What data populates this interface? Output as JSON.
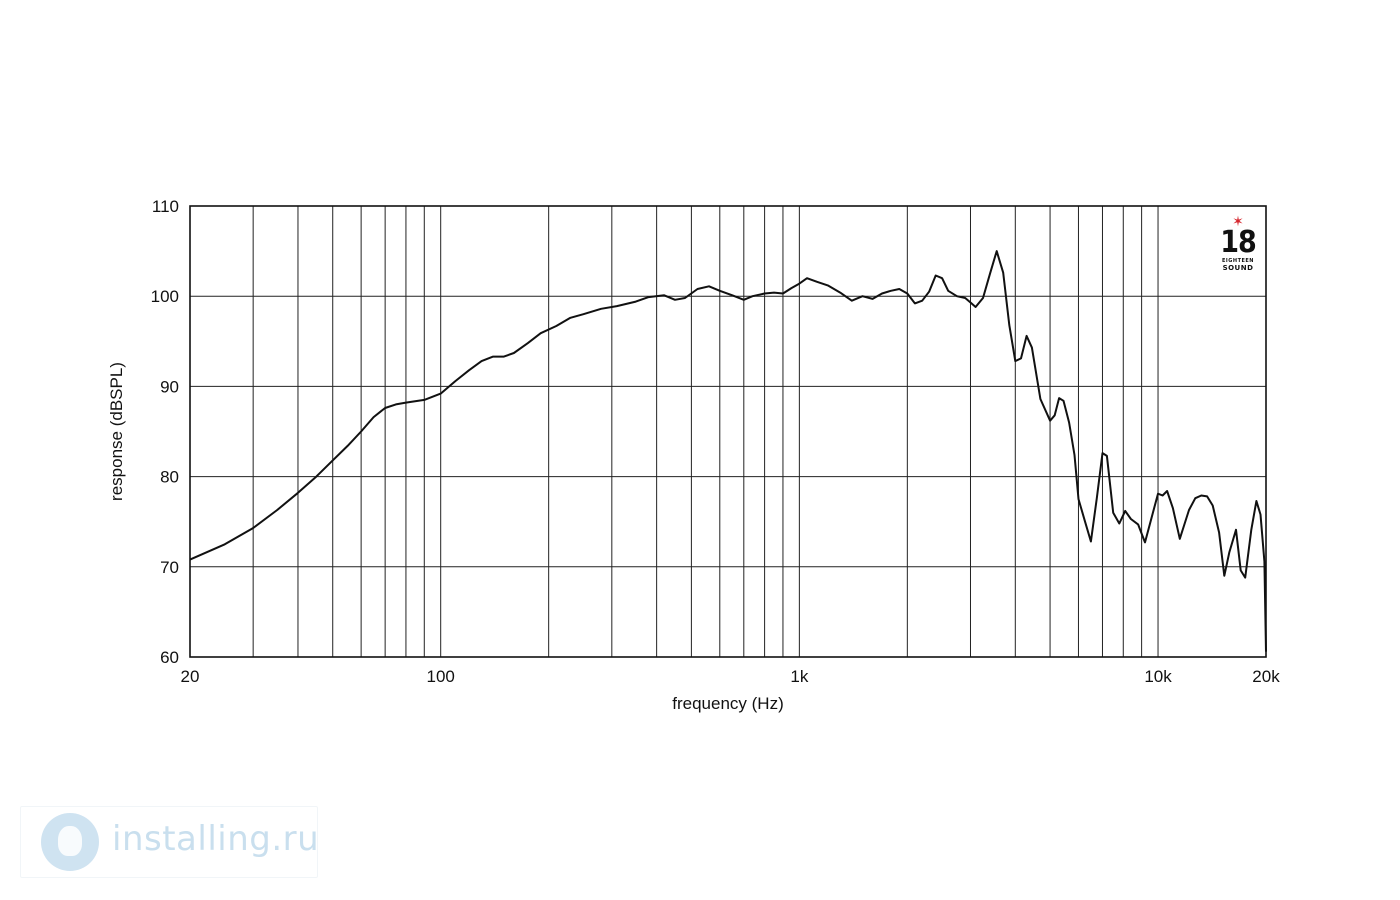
{
  "chart_data": {
    "type": "line",
    "title": "",
    "xlabel": "frequency (Hz)",
    "ylabel": "response (dBSPL)",
    "x_scale": "log",
    "xlim": [
      20,
      20000
    ],
    "ylim": [
      60,
      110
    ],
    "grid": true,
    "x_tick_labels": [
      {
        "value": 20,
        "label": "20"
      },
      {
        "value": 100,
        "label": "100"
      },
      {
        "value": 1000,
        "label": "1k"
      },
      {
        "value": 10000,
        "label": "10k"
      },
      {
        "value": 20000,
        "label": "20k"
      }
    ],
    "y_tick_labels": [
      {
        "value": 60,
        "label": "60"
      },
      {
        "value": 70,
        "label": "70"
      },
      {
        "value": 80,
        "label": "80"
      },
      {
        "value": 90,
        "label": "90"
      },
      {
        "value": 100,
        "label": "100"
      },
      {
        "value": 110,
        "label": "110"
      }
    ],
    "x_gridlines": [
      20,
      30,
      40,
      50,
      60,
      70,
      80,
      90,
      100,
      200,
      300,
      400,
      500,
      600,
      700,
      800,
      900,
      1000,
      2000,
      3000,
      4000,
      5000,
      6000,
      7000,
      8000,
      9000,
      10000,
      20000
    ],
    "y_gridlines": [
      60,
      70,
      80,
      90,
      100,
      110
    ],
    "series": [
      {
        "color": "#111111",
        "points": [
          [
            20,
            70.8
          ],
          [
            25,
            72.5
          ],
          [
            30,
            74.3
          ],
          [
            35,
            76.3
          ],
          [
            40,
            78.2
          ],
          [
            45,
            80.0
          ],
          [
            50,
            81.8
          ],
          [
            55,
            83.4
          ],
          [
            60,
            85.0
          ],
          [
            65,
            86.6
          ],
          [
            70,
            87.6
          ],
          [
            75,
            88.0
          ],
          [
            80,
            88.2
          ],
          [
            90,
            88.5
          ],
          [
            100,
            89.2
          ],
          [
            110,
            90.6
          ],
          [
            120,
            91.8
          ],
          [
            130,
            92.8
          ],
          [
            140,
            93.3
          ],
          [
            150,
            93.3
          ],
          [
            160,
            93.7
          ],
          [
            175,
            94.8
          ],
          [
            190,
            95.9
          ],
          [
            210,
            96.7
          ],
          [
            230,
            97.6
          ],
          [
            250,
            98.0
          ],
          [
            280,
            98.6
          ],
          [
            310,
            98.9
          ],
          [
            350,
            99.4
          ],
          [
            380,
            99.9
          ],
          [
            420,
            100.1
          ],
          [
            450,
            99.6
          ],
          [
            480,
            99.8
          ],
          [
            520,
            100.8
          ],
          [
            560,
            101.1
          ],
          [
            600,
            100.6
          ],
          [
            650,
            100.1
          ],
          [
            700,
            99.6
          ],
          [
            740,
            100.0
          ],
          [
            800,
            100.3
          ],
          [
            850,
            100.4
          ],
          [
            900,
            100.3
          ],
          [
            950,
            100.9
          ],
          [
            1000,
            101.4
          ],
          [
            1050,
            102.0
          ],
          [
            1120,
            101.6
          ],
          [
            1200,
            101.2
          ],
          [
            1300,
            100.4
          ],
          [
            1400,
            99.5
          ],
          [
            1500,
            100.0
          ],
          [
            1600,
            99.7
          ],
          [
            1700,
            100.3
          ],
          [
            1800,
            100.6
          ],
          [
            1900,
            100.8
          ],
          [
            2000,
            100.3
          ],
          [
            2100,
            99.2
          ],
          [
            2200,
            99.5
          ],
          [
            2300,
            100.5
          ],
          [
            2400,
            102.3
          ],
          [
            2500,
            102.0
          ],
          [
            2600,
            100.6
          ],
          [
            2750,
            100.0
          ],
          [
            2900,
            99.8
          ],
          [
            3000,
            99.3
          ],
          [
            3100,
            98.8
          ],
          [
            3250,
            99.8
          ],
          [
            3400,
            102.5
          ],
          [
            3550,
            105.0
          ],
          [
            3700,
            102.6
          ],
          [
            3850,
            96.8
          ],
          [
            4000,
            92.8
          ],
          [
            4150,
            93.1
          ],
          [
            4300,
            95.6
          ],
          [
            4450,
            94.3
          ],
          [
            4700,
            88.6
          ],
          [
            5000,
            86.2
          ],
          [
            5150,
            86.8
          ],
          [
            5300,
            88.7
          ],
          [
            5450,
            88.4
          ],
          [
            5650,
            86.0
          ],
          [
            5850,
            82.4
          ],
          [
            6000,
            77.5
          ],
          [
            6250,
            75.1
          ],
          [
            6500,
            72.8
          ],
          [
            6750,
            77.6
          ],
          [
            7000,
            82.6
          ],
          [
            7200,
            82.3
          ],
          [
            7500,
            76.0
          ],
          [
            7800,
            74.8
          ],
          [
            8100,
            76.2
          ],
          [
            8400,
            75.3
          ],
          [
            8800,
            74.7
          ],
          [
            9200,
            72.7
          ],
          [
            9600,
            75.5
          ],
          [
            10000,
            78.1
          ],
          [
            10300,
            77.9
          ],
          [
            10600,
            78.4
          ],
          [
            11000,
            76.5
          ],
          [
            11500,
            73.1
          ],
          [
            12200,
            76.3
          ],
          [
            12700,
            77.6
          ],
          [
            13200,
            77.9
          ],
          [
            13700,
            77.8
          ],
          [
            14200,
            76.8
          ],
          [
            14800,
            73.8
          ],
          [
            15300,
            69.0
          ],
          [
            15800,
            71.6
          ],
          [
            16500,
            74.1
          ],
          [
            17000,
            69.6
          ],
          [
            17500,
            68.8
          ],
          [
            18200,
            74.1
          ],
          [
            18800,
            77.3
          ],
          [
            19300,
            75.8
          ],
          [
            19800,
            70.6
          ],
          [
            20000,
            60.6
          ]
        ]
      }
    ]
  },
  "watermark": {
    "text": "installing.ru"
  },
  "logo": {
    "number": "18",
    "line1": "EIGHTEEN",
    "line2": "SOUND"
  }
}
